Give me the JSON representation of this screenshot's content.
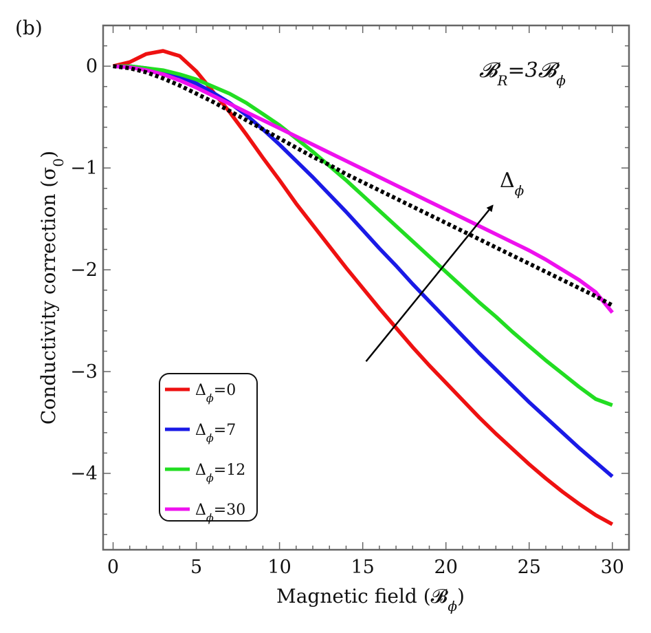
{
  "chart_data": {
    "type": "line",
    "panel_label": "(b)",
    "title": "",
    "xlabel": "Magnetic field (𝓑",
    "xlabel_sub": "ϕ",
    "xlabel_close": ")",
    "ylabel": "Conductivity correction (σ",
    "ylabel_sub": "0",
    "ylabel_close": ")",
    "xlim": [
      -0.6,
      31
    ],
    "ylim": [
      -4.75,
      0.4
    ],
    "xticks": [
      0,
      5,
      10,
      15,
      20,
      25,
      30
    ],
    "yticks": [
      0,
      -1,
      -2,
      -3,
      -4
    ],
    "xtick_labels": [
      "0",
      "5",
      "10",
      "15",
      "20",
      "25",
      "30"
    ],
    "ytick_labels": [
      "0",
      "−1",
      "−2",
      "−3",
      "−4"
    ],
    "annotation": {
      "lhs": "𝓑",
      "lhs_sub": "R",
      "rhs": "=3𝓑",
      "rhs_sub": "ϕ"
    },
    "arrow_label": "Δ",
    "arrow_label_sub": "ϕ",
    "arrow": {
      "from": [
        15.2,
        -2.9
      ],
      "to": [
        22.8,
        -1.37
      ]
    },
    "legend_position": "bottom-left",
    "legend_prefix": "Δ",
    "legend_sub": "ϕ",
    "series": [
      {
        "name": "=0",
        "color": "#ee1111",
        "x": [
          0,
          1,
          2,
          3,
          4,
          5,
          6,
          7,
          8,
          9,
          10,
          11,
          12,
          13,
          14,
          15,
          16,
          17,
          18,
          19,
          20,
          21,
          22,
          23,
          24,
          25,
          26,
          27,
          28,
          29,
          30
        ],
        "y": [
          0,
          0.04,
          0.12,
          0.15,
          0.1,
          -0.05,
          -0.25,
          -0.45,
          -0.67,
          -0.9,
          -1.12,
          -1.35,
          -1.56,
          -1.77,
          -1.98,
          -2.18,
          -2.38,
          -2.57,
          -2.76,
          -2.94,
          -3.11,
          -3.28,
          -3.45,
          -3.61,
          -3.76,
          -3.91,
          -4.05,
          -4.18,
          -4.3,
          -4.41,
          -4.5
        ]
      },
      {
        "name": "=7",
        "color": "#1a1ae6",
        "x": [
          0,
          1,
          2,
          3,
          4,
          5,
          6,
          7,
          8,
          9,
          10,
          11,
          12,
          13,
          14,
          15,
          16,
          17,
          18,
          19,
          20,
          21,
          22,
          23,
          24,
          25,
          26,
          27,
          28,
          29,
          30
        ],
        "y": [
          0,
          0,
          -0.02,
          -0.05,
          -0.1,
          -0.17,
          -0.26,
          -0.36,
          -0.48,
          -0.62,
          -0.77,
          -0.93,
          -1.09,
          -1.26,
          -1.43,
          -1.61,
          -1.79,
          -1.96,
          -2.14,
          -2.31,
          -2.48,
          -2.65,
          -2.82,
          -2.98,
          -3.14,
          -3.3,
          -3.45,
          -3.6,
          -3.75,
          -3.89,
          -4.03
        ]
      },
      {
        "name": "=12",
        "color": "#22dd22",
        "x": [
          0,
          1,
          2,
          3,
          4,
          5,
          6,
          7,
          8,
          9,
          10,
          11,
          12,
          13,
          14,
          15,
          16,
          17,
          18,
          19,
          20,
          21,
          22,
          23,
          24,
          25,
          26,
          27,
          28,
          29,
          30
        ],
        "y": [
          0,
          0,
          -0.02,
          -0.04,
          -0.08,
          -0.13,
          -0.2,
          -0.27,
          -0.36,
          -0.47,
          -0.58,
          -0.71,
          -0.84,
          -0.98,
          -1.12,
          -1.27,
          -1.42,
          -1.57,
          -1.72,
          -1.87,
          -2.02,
          -2.17,
          -2.32,
          -2.46,
          -2.61,
          -2.75,
          -2.89,
          -3.02,
          -3.15,
          -3.27,
          -3.33
        ]
      },
      {
        "name": "=30",
        "color": "#ee11ee",
        "x": [
          0,
          1,
          2,
          3,
          4,
          5,
          6,
          7,
          8,
          9,
          10,
          11,
          12,
          13,
          14,
          15,
          16,
          17,
          18,
          19,
          20,
          21,
          22,
          23,
          24,
          25,
          26,
          27,
          28,
          29,
          30
        ],
        "y": [
          0,
          -0.01,
          -0.04,
          -0.08,
          -0.14,
          -0.21,
          -0.29,
          -0.37,
          -0.45,
          -0.53,
          -0.61,
          -0.69,
          -0.77,
          -0.85,
          -0.93,
          -1.01,
          -1.09,
          -1.17,
          -1.25,
          -1.33,
          -1.41,
          -1.49,
          -1.57,
          -1.65,
          -1.73,
          -1.81,
          -1.9,
          -2.0,
          -2.1,
          -2.22,
          -2.42
        ]
      },
      {
        "name": "",
        "color": "#000000",
        "dashed": true,
        "x": [
          0,
          1,
          2,
          3,
          4,
          5,
          6,
          7,
          8,
          9,
          10,
          11,
          12,
          13,
          14,
          15,
          16,
          17,
          18,
          19,
          20,
          21,
          22,
          23,
          24,
          25,
          26,
          27,
          28,
          29,
          30
        ],
        "y": [
          0,
          -0.02,
          -0.06,
          -0.12,
          -0.19,
          -0.27,
          -0.35,
          -0.44,
          -0.53,
          -0.62,
          -0.71,
          -0.8,
          -0.89,
          -0.97,
          -1.06,
          -1.14,
          -1.22,
          -1.3,
          -1.38,
          -1.46,
          -1.54,
          -1.62,
          -1.7,
          -1.78,
          -1.86,
          -1.94,
          -2.02,
          -2.1,
          -2.18,
          -2.26,
          -2.35
        ]
      }
    ]
  }
}
